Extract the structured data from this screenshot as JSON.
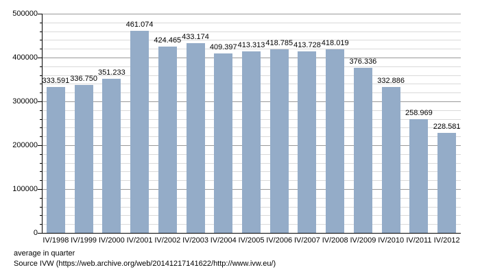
{
  "chart_data": {
    "type": "bar",
    "title": "",
    "categories": [
      "IV/1998",
      "IV/1999",
      "IV/2000",
      "IV/2001",
      "IV/2002",
      "IV/2003",
      "IV/2004",
      "IV/2005",
      "IV/2006",
      "IV/2007",
      "IV/2008",
      "IV/2009",
      "IV/2010",
      "IV/2011",
      "IV/2012"
    ],
    "values": [
      333591,
      336750,
      351233,
      461074,
      424465,
      433174,
      409397,
      413313,
      418785,
      413728,
      418019,
      376336,
      332886,
      258969,
      228581
    ],
    "value_labels": [
      "333.591",
      "336.750",
      "351.233",
      "461.074",
      "424.465",
      "433.174",
      "409.397",
      "413.313",
      "418.785",
      "413.728",
      "418.019",
      "376.336",
      "332.886",
      "258.969",
      "228.581"
    ],
    "xlabel": "",
    "ylabel": "",
    "ylim": [
      0,
      500000
    ],
    "y_major_step": 100000,
    "y_minor_step": 20000,
    "y_tick_labels": [
      "0",
      "100000",
      "200000",
      "300000",
      "400000",
      "500000"
    ],
    "grid": "on",
    "legend_position": "none",
    "colors": {
      "bar": "#94ACC8",
      "major_grid": "#999999",
      "minor_grid": "#d9d9d9",
      "axis": "#000000",
      "text": "#000000"
    }
  },
  "footer": {
    "note": "average in quarter",
    "source": "Source IVW (https://web.archive.org/web/20141217141622/http://www.ivw.eu/)"
  }
}
